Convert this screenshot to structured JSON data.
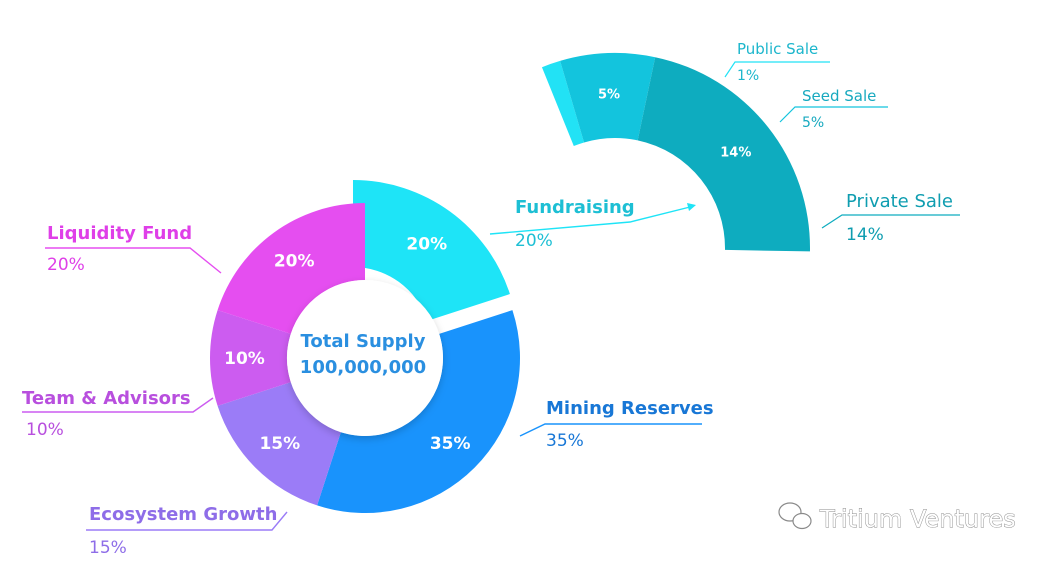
{
  "chart_data": {
    "type": "pie",
    "center_label": {
      "title": "Total Supply",
      "value": "100,000,000"
    },
    "slices": [
      {
        "name": "Fundraising",
        "value": 20,
        "label": "20%",
        "color": "#1ee4f7"
      },
      {
        "name": "Mining Reserves",
        "value": 35,
        "label": "35%",
        "color": "#1993fc"
      },
      {
        "name": "Ecosystem Growth",
        "value": 15,
        "label": "15%",
        "color": "#9b7cf7"
      },
      {
        "name": "Team & Advisors",
        "value": 10,
        "label": "10%",
        "color": "#cc5cf0"
      },
      {
        "name": "Liquidity Fund",
        "value": 20,
        "label": "20%",
        "color": "#e54ef0"
      }
    ],
    "breakdown": {
      "of": "Fundraising",
      "slices": [
        {
          "name": "Public Sale",
          "value": 1,
          "label": "1%",
          "color": "#22e2f5"
        },
        {
          "name": "Seed Sale",
          "value": 5,
          "label": "5%",
          "color": "#13c4dd"
        },
        {
          "name": "Private Sale",
          "value": 14,
          "label": "14%",
          "color": "#0eacbf"
        }
      ]
    }
  },
  "watermark": {
    "text": "Tritium Ventures",
    "icon": "wechat-icon"
  }
}
